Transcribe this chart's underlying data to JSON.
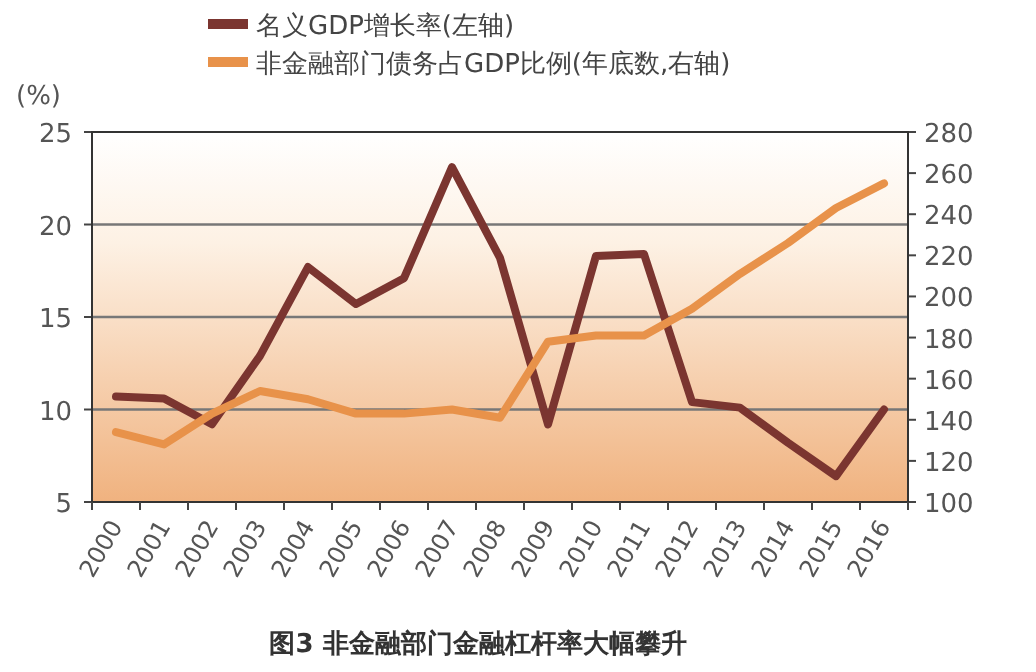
{
  "chart_data": {
    "type": "line",
    "title": "图3 非金融部门金融杠杆率大幅攀升",
    "ylabel": "(%)",
    "categories": [
      "2000",
      "2001",
      "2002",
      "2003",
      "2004",
      "2005",
      "2006",
      "2007",
      "2008",
      "2009",
      "2010",
      "2011",
      "2012",
      "2013",
      "2014",
      "2015",
      "2016"
    ],
    "series": [
      {
        "name": "名义GDP增长率(左轴)",
        "color": "#7b3530",
        "values": [
          10.7,
          10.6,
          9.2,
          12.9,
          17.7,
          15.7,
          17.1,
          23.1,
          18.2,
          9.2,
          18.3,
          18.4,
          10.4,
          10.1,
          8.2,
          6.4,
          10.0
        ]
      },
      {
        "name": "非金融部门债务占GDP比例(年底数,右轴)",
        "color": "#e8924a",
        "axis": "y2",
        "values": [
          134,
          128,
          143,
          154,
          150,
          143,
          143,
          145,
          141,
          178,
          181,
          181,
          194,
          211,
          226,
          243,
          255
        ]
      }
    ],
    "ylim": [
      5,
      25
    ],
    "yticks": [
      5,
      10,
      15,
      20,
      25
    ],
    "y2lim": [
      100,
      280
    ],
    "y2ticks": [
      100,
      120,
      140,
      160,
      180,
      200,
      220,
      240,
      260,
      280
    ],
    "grid": "y",
    "legend": "top",
    "marker": "none",
    "line_style": "solid"
  }
}
